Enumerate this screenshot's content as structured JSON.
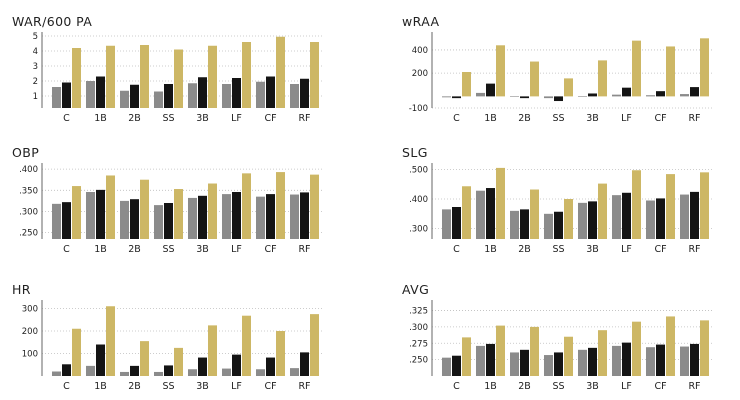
{
  "colors": {
    "series": [
      "#8b8b8b",
      "#141414",
      "#cdb765"
    ],
    "grid": "#bdbdbd",
    "axis": "#666666"
  },
  "chart_data": [
    {
      "type": "bar",
      "title": "WAR/600 PA",
      "categories": [
        "C",
        "1B",
        "2B",
        "SS",
        "3B",
        "LF",
        "CF",
        "RF"
      ],
      "series": [
        {
          "values": [
            1.6,
            2.0,
            1.35,
            1.3,
            1.85,
            1.8,
            1.95,
            1.8
          ]
        },
        {
          "values": [
            1.9,
            2.3,
            1.75,
            1.8,
            2.25,
            2.2,
            2.3,
            2.15
          ]
        },
        {
          "values": [
            4.2,
            4.35,
            4.4,
            4.1,
            4.35,
            4.6,
            4.95,
            4.6
          ]
        }
      ],
      "yticks": [
        1,
        2,
        3,
        4,
        5
      ],
      "ytick_labels": [
        "1",
        "2",
        "3",
        "4",
        "5"
      ],
      "ylim": [
        0.2,
        5
      ],
      "grid": true
    },
    {
      "type": "bar",
      "title": "wRAA",
      "categories": [
        "C",
        "1B",
        "2B",
        "SS",
        "3B",
        "LF",
        "CF",
        "RF"
      ],
      "series": [
        {
          "values": [
            -8,
            30,
            -5,
            -15,
            2,
            15,
            10,
            20
          ]
        },
        {
          "values": [
            -15,
            110,
            -15,
            -40,
            25,
            75,
            45,
            80
          ]
        },
        {
          "values": [
            210,
            440,
            300,
            155,
            310,
            480,
            430,
            500
          ]
        }
      ],
      "yticks": [
        -100,
        200,
        400
      ],
      "ytick_labels": [
        "-100",
        "200",
        "400"
      ],
      "ylim": [
        -100,
        520
      ],
      "grid": true
    },
    {
      "type": "bar",
      "title": "OBP",
      "categories": [
        "C",
        "1B",
        "2B",
        "SS",
        "3B",
        "LF",
        "CF",
        "RF"
      ],
      "series": [
        {
          "values": [
            0.318,
            0.346,
            0.325,
            0.315,
            0.332,
            0.341,
            0.335,
            0.34
          ]
        },
        {
          "values": [
            0.322,
            0.351,
            0.329,
            0.32,
            0.337,
            0.346,
            0.341,
            0.345
          ]
        },
        {
          "values": [
            0.36,
            0.385,
            0.375,
            0.353,
            0.366,
            0.39,
            0.393,
            0.387
          ]
        }
      ],
      "yticks": [
        0.25,
        0.3,
        0.35,
        0.4
      ],
      "ytick_labels": [
        ".250",
        ".300",
        ".350",
        ".400"
      ],
      "ylim": [
        0.235,
        0.405
      ],
      "grid": true
    },
    {
      "type": "bar",
      "title": "SLG",
      "categories": [
        "C",
        "1B",
        "2B",
        "SS",
        "3B",
        "LF",
        "CF",
        "RF"
      ],
      "series": [
        {
          "values": [
            0.365,
            0.428,
            0.36,
            0.35,
            0.387,
            0.413,
            0.395,
            0.415
          ]
        },
        {
          "values": [
            0.373,
            0.437,
            0.365,
            0.357,
            0.392,
            0.421,
            0.402,
            0.424
          ]
        },
        {
          "values": [
            0.443,
            0.505,
            0.432,
            0.4,
            0.452,
            0.497,
            0.484,
            0.49
          ]
        }
      ],
      "yticks": [
        0.3,
        0.4,
        0.5
      ],
      "ytick_labels": [
        ".300",
        ".400",
        ".500"
      ],
      "ylim": [
        0.265,
        0.508
      ],
      "grid": true
    },
    {
      "type": "bar",
      "title": "HR",
      "categories": [
        "C",
        "1B",
        "2B",
        "SS",
        "3B",
        "LF",
        "CF",
        "RF"
      ],
      "series": [
        {
          "values": [
            20,
            45,
            18,
            18,
            30,
            33,
            30,
            35
          ]
        },
        {
          "values": [
            52,
            140,
            45,
            47,
            82,
            95,
            82,
            105
          ]
        },
        {
          "values": [
            210,
            310,
            155,
            125,
            225,
            268,
            200,
            275
          ]
        }
      ],
      "yticks": [
        100,
        200,
        300
      ],
      "ytick_labels": [
        "100",
        "200",
        "300"
      ],
      "ylim": [
        0,
        320
      ],
      "grid": true
    },
    {
      "type": "bar",
      "title": "AVG",
      "categories": [
        "C",
        "1B",
        "2B",
        "SS",
        "3B",
        "LF",
        "CF",
        "RF"
      ],
      "series": [
        {
          "values": [
            0.253,
            0.271,
            0.261,
            0.257,
            0.265,
            0.271,
            0.269,
            0.27
          ]
        },
        {
          "values": [
            0.256,
            0.274,
            0.265,
            0.261,
            0.268,
            0.276,
            0.273,
            0.274
          ]
        },
        {
          "values": [
            0.284,
            0.302,
            0.3,
            0.285,
            0.295,
            0.308,
            0.316,
            0.31
          ]
        }
      ],
      "yticks": [
        0.25,
        0.275,
        0.3,
        0.325
      ],
      "ytick_labels": [
        ".250",
        ".275",
        ".300",
        ".325"
      ],
      "ylim": [
        0.225,
        0.335
      ],
      "grid": true
    }
  ]
}
